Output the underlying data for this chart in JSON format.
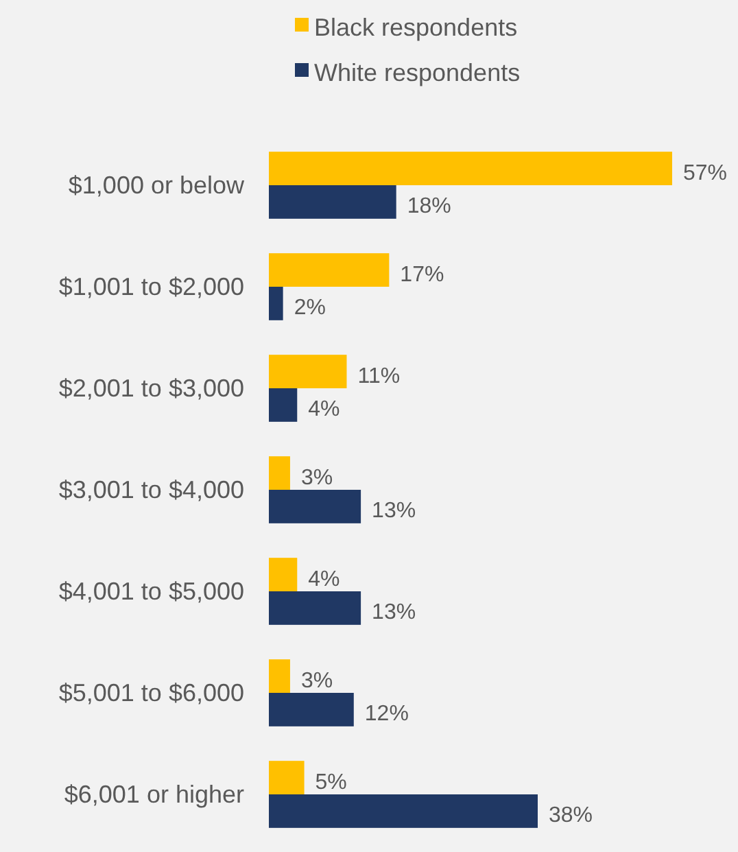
{
  "chart_data": {
    "type": "bar",
    "orientation": "horizontal",
    "categories": [
      "$1,000 or below",
      "$1,001 to $2,000",
      "$2,001 to $3,000",
      "$3,001 to $4,000",
      "$4,001 to $5,000",
      "$5,001 to $6,000",
      "$6,001 or higher"
    ],
    "series": [
      {
        "name": "Black respondents",
        "color": "#ffc000",
        "values": [
          57,
          17,
          11,
          3,
          4,
          3,
          5
        ],
        "value_labels": [
          "57%",
          "17%",
          "11%",
          "3%",
          "4%",
          "3%",
          "5%"
        ]
      },
      {
        "name": "White respondents",
        "color": "#203864",
        "values": [
          18,
          2,
          4,
          13,
          13,
          12,
          38
        ],
        "value_labels": [
          "18%",
          "2%",
          "4%",
          "13%",
          "13%",
          "12%",
          "38%"
        ]
      }
    ],
    "legend": "top"
  }
}
